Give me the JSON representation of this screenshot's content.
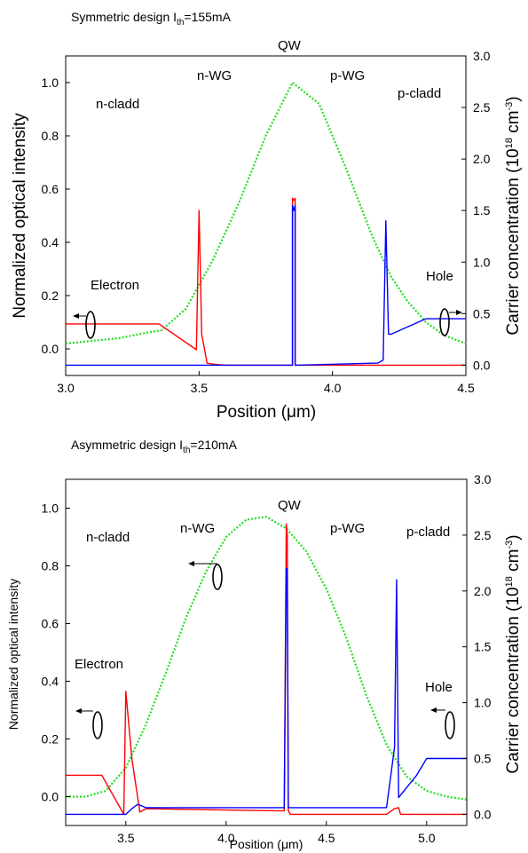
{
  "chart_data": [
    {
      "type": "line",
      "title_prefix": "Symmetric design I",
      "title_sub": "th",
      "title_suffix": "=155mA",
      "xlabel_prefix": "Position (",
      "xlabel_mu": "μ",
      "xlabel_suffix": "m)",
      "ylabel": "Normalized optical intensity",
      "y2label_prefix": "Carrier concentration (10",
      "y2label_exp": "18",
      "y2label_mid": " cm",
      "y2label_exp2": "-3",
      "y2label_suffix": ")",
      "xlim": [
        3.0,
        4.5
      ],
      "ylim": [
        -0.1,
        1.1
      ],
      "y2lim": [
        -0.1,
        3.0
      ],
      "xticks": [
        "3.0",
        "3.5",
        "4.0",
        "4.5"
      ],
      "yticks": [
        "0.0",
        "0.2",
        "0.4",
        "0.6",
        "0.8",
        "1.0"
      ],
      "y2ticks": [
        "0.0",
        "0.5",
        "1.0",
        "1.5",
        "2.0",
        "2.5",
        "3.0"
      ],
      "regions": [
        "n-cladd",
        "n-WG",
        "QW",
        "p-WG",
        "p-cladd"
      ],
      "annotations": [
        "Electron",
        "Hole"
      ],
      "series": [
        {
          "color": "#22dd22",
          "style": "dotted",
          "x": [
            3.0,
            3.1,
            3.2,
            3.3,
            3.36,
            3.45,
            3.55,
            3.65,
            3.75,
            3.85,
            3.95,
            4.05,
            4.15,
            4.22,
            4.28,
            4.35,
            4.42,
            4.5
          ],
          "y": [
            0.02,
            0.03,
            0.04,
            0.06,
            0.07,
            0.15,
            0.33,
            0.55,
            0.8,
            1.0,
            0.92,
            0.68,
            0.42,
            0.27,
            0.18,
            0.1,
            0.05,
            0.02
          ]
        },
        {
          "color": "#ff0000",
          "style": "solid",
          "axis": "y2",
          "x": [
            3.0,
            3.35,
            3.49,
            3.5,
            3.51,
            3.53,
            3.55,
            3.6,
            3.85,
            3.85,
            3.855,
            3.86,
            3.86,
            4.2,
            4.2,
            4.5
          ],
          "y": [
            0.4,
            0.4,
            0.15,
            1.5,
            0.3,
            0.02,
            0.01,
            0.0,
            0.0,
            1.62,
            1.6,
            1.62,
            0.0,
            0.0,
            0.0,
            0.0
          ]
        },
        {
          "color": "#0000ff",
          "style": "solid",
          "axis": "y2",
          "x": [
            3.0,
            3.6,
            3.85,
            3.85,
            3.855,
            3.86,
            3.86,
            4.17,
            4.19,
            4.2,
            4.21,
            4.22,
            4.35,
            4.4,
            4.5
          ],
          "y": [
            0.0,
            0.0,
            0.0,
            1.55,
            1.5,
            1.55,
            0.0,
            0.02,
            0.05,
            1.4,
            0.3,
            0.3,
            0.45,
            0.45,
            0.45
          ]
        }
      ]
    },
    {
      "type": "line",
      "title_prefix": "Asymmetric design I",
      "title_sub": "th",
      "title_suffix": "=210mA",
      "xlabel_prefix": "Position (",
      "xlabel_mu": "μ",
      "xlabel_suffix": "m)",
      "ylabel": "Normalized optical intensity",
      "y2label_prefix": "Carrier concentration (10",
      "y2label_exp": "18",
      "y2label_mid": " cm",
      "y2label_exp2": "-3",
      "y2label_suffix": ")",
      "xlim": [
        3.2,
        5.2
      ],
      "ylim": [
        -0.1,
        1.1
      ],
      "y2lim": [
        -0.1,
        3.0
      ],
      "xticks": [
        "3.5",
        "4.0",
        "4.5",
        "5.0"
      ],
      "yticks": [
        "0.0",
        "0.2",
        "0.4",
        "0.6",
        "0.8",
        "1.0"
      ],
      "y2ticks": [
        "0.0",
        "0.5",
        "1.0",
        "1.5",
        "2.0",
        "2.5",
        "3.0"
      ],
      "regions": [
        "n-cladd",
        "n-WG",
        "QW",
        "p-WG",
        "p-cladd"
      ],
      "annotations": [
        "Electron",
        "Hole"
      ],
      "series": [
        {
          "color": "#22dd22",
          "style": "dotted",
          "x": [
            3.2,
            3.3,
            3.4,
            3.5,
            3.6,
            3.7,
            3.8,
            3.9,
            4.0,
            4.1,
            4.2,
            4.3,
            4.4,
            4.5,
            4.6,
            4.7,
            4.8,
            4.9,
            5.0,
            5.1,
            5.2
          ],
          "y": [
            0.0,
            0.0,
            0.02,
            0.1,
            0.25,
            0.43,
            0.62,
            0.78,
            0.9,
            0.96,
            0.97,
            0.93,
            0.85,
            0.72,
            0.55,
            0.35,
            0.18,
            0.07,
            0.02,
            0.0,
            -0.01
          ]
        },
        {
          "color": "#ff0000",
          "style": "solid",
          "axis": "y2",
          "x": [
            3.2,
            3.38,
            3.49,
            3.5,
            3.53,
            3.57,
            3.6,
            4.29,
            4.3,
            4.305,
            4.31,
            4.32,
            4.8,
            4.84,
            4.86,
            4.87,
            4.95,
            5.2
          ],
          "y": [
            0.35,
            0.35,
            0.0,
            1.1,
            0.5,
            0.02,
            0.05,
            0.03,
            2.6,
            2.5,
            0.03,
            0.0,
            0.0,
            0.05,
            0.06,
            0.0,
            0.0,
            0.0
          ]
        },
        {
          "color": "#0000ff",
          "style": "solid",
          "axis": "y2",
          "x": [
            3.2,
            3.5,
            3.53,
            3.56,
            3.6,
            4.29,
            4.3,
            4.305,
            4.31,
            4.8,
            4.84,
            4.85,
            4.86,
            4.95,
            5.0,
            5.2
          ],
          "y": [
            0.0,
            0.0,
            0.05,
            0.09,
            0.06,
            0.06,
            2.2,
            2.2,
            0.06,
            0.06,
            0.6,
            2.1,
            0.15,
            0.35,
            0.5,
            0.5
          ]
        }
      ]
    }
  ]
}
